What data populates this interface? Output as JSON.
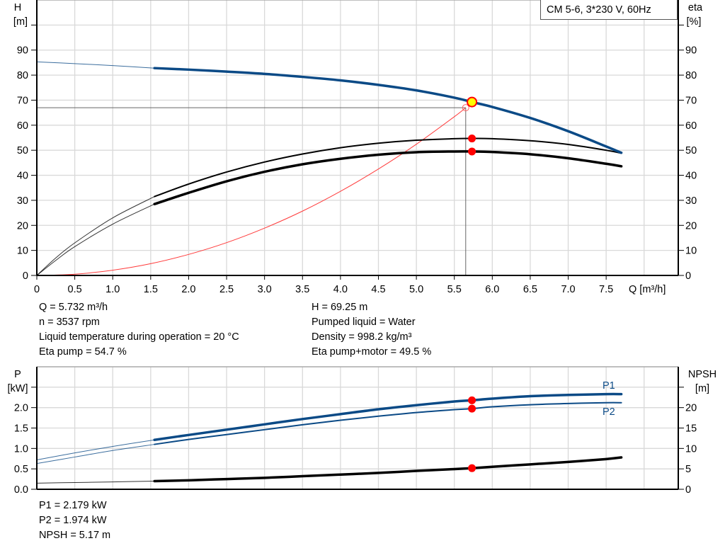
{
  "chart_data": [
    {
      "type": "line",
      "title": "CM 5-6, 3*230 V, 60Hz",
      "xlabel": "Q [m³/h]",
      "ylabel_left": [
        "H",
        "[m]"
      ],
      "ylabel_right": [
        "eta",
        "[%]"
      ],
      "xlim": [
        0,
        8.45
      ],
      "ylim": [
        0,
        110
      ],
      "grid": true,
      "x_ticks": [
        "0",
        "0.5",
        "1.0",
        "1.5",
        "2.0",
        "2.5",
        "3.0",
        "3.5",
        "4.0",
        "4.5",
        "5.0",
        "5.5",
        "6.0",
        "6.5",
        "7.0",
        "7.5"
      ],
      "y_ticks": [
        "0",
        "10",
        "20",
        "30",
        "40",
        "50",
        "60",
        "70",
        "80",
        "90"
      ],
      "series": [
        {
          "key": "H",
          "color": "#0b4a86",
          "thin_until": 1.55,
          "x": [
            0,
            0.5,
            1.0,
            1.55,
            2.0,
            2.5,
            3.0,
            3.5,
            4.0,
            4.5,
            5.0,
            5.5,
            5.732,
            6.0,
            6.5,
            7.0,
            7.5,
            7.7
          ],
          "y": [
            85.3,
            84.6,
            83.8,
            82.8,
            82.2,
            81.4,
            80.5,
            79.3,
            77.9,
            76.1,
            73.9,
            71.0,
            69.25,
            67.3,
            62.9,
            57.6,
            51.5,
            49.0
          ]
        },
        {
          "key": "eta_pump",
          "color": "#000000",
          "thin_until": 1.55,
          "x": [
            0,
            0.25,
            0.5,
            1.0,
            1.55,
            2.0,
            2.5,
            3.0,
            3.5,
            4.0,
            4.5,
            5.0,
            5.5,
            5.732,
            6.0,
            6.5,
            7.0,
            7.5,
            7.7
          ],
          "y": [
            0,
            7,
            13,
            23,
            31.5,
            36.5,
            41.3,
            45.3,
            48.5,
            51.0,
            52.8,
            54.0,
            54.6,
            54.7,
            54.6,
            53.8,
            52.3,
            50.0,
            48.8
          ]
        },
        {
          "key": "eta_pump_motor",
          "color": "#000000",
          "thin_until": 1.55,
          "x": [
            0,
            0.25,
            0.5,
            1.0,
            1.55,
            2.0,
            2.5,
            3.0,
            3.5,
            4.0,
            4.5,
            5.0,
            5.5,
            5.732,
            6.0,
            6.5,
            7.0,
            7.5,
            7.7
          ],
          "y": [
            0,
            6,
            11.5,
            20.5,
            28.5,
            33.0,
            37.6,
            41.4,
            44.4,
            46.6,
            48.2,
            49.2,
            49.5,
            49.5,
            49.3,
            48.4,
            46.8,
            44.6,
            43.6
          ]
        },
        {
          "key": "system_curve",
          "color": "#ff3b3b",
          "x": [
            0,
            0.5,
            1.0,
            1.5,
            2.0,
            2.5,
            3.0,
            3.5,
            4.0,
            4.5,
            5.0,
            5.5,
            5.65
          ],
          "y": [
            0,
            0.5,
            2.1,
            4.7,
            8.4,
            13.1,
            18.9,
            25.7,
            33.6,
            42.5,
            52.4,
            63.4,
            67.0
          ]
        }
      ],
      "duty_point": {
        "x": 5.732,
        "H": 69.25,
        "eta_pump": 54.7,
        "eta_pump_motor": 49.5
      },
      "required_point": {
        "x": 5.65,
        "H": 67.0
      }
    },
    {
      "type": "line",
      "ylabel_left": [
        "P",
        "[kW]"
      ],
      "ylabel_right": [
        "NPSH",
        "[m]"
      ],
      "xlim": [
        0,
        8.45
      ],
      "ylim": [
        0,
        3.0
      ],
      "ylim_right": [
        0,
        30
      ],
      "grid": true,
      "y_ticks": [
        "0.0",
        "0.5",
        "1.0",
        "1.5",
        "2.0"
      ],
      "y_ticks_right": [
        "0",
        "5",
        "10",
        "15",
        "20"
      ],
      "series": [
        {
          "name": "P1",
          "color": "#0b4a86",
          "thin_until": 1.55,
          "x": [
            0,
            0.5,
            1.0,
            1.55,
            2.0,
            2.5,
            3.0,
            3.5,
            4.0,
            4.5,
            5.0,
            5.5,
            5.732,
            6.0,
            6.5,
            7.0,
            7.5,
            7.7
          ],
          "y": [
            0.72,
            0.89,
            1.05,
            1.21,
            1.33,
            1.46,
            1.59,
            1.72,
            1.84,
            1.96,
            2.06,
            2.15,
            2.179,
            2.22,
            2.28,
            2.31,
            2.33,
            2.33
          ]
        },
        {
          "name": "P2",
          "color": "#0b4a86",
          "thin_until": 1.55,
          "x": [
            0,
            0.5,
            1.0,
            1.55,
            2.0,
            2.5,
            3.0,
            3.5,
            4.0,
            4.5,
            5.0,
            5.5,
            5.732,
            6.0,
            6.5,
            7.0,
            7.5,
            7.7
          ],
          "y": [
            0.63,
            0.79,
            0.95,
            1.1,
            1.22,
            1.34,
            1.46,
            1.58,
            1.69,
            1.79,
            1.88,
            1.95,
            1.974,
            2.02,
            2.07,
            2.1,
            2.12,
            2.12
          ]
        },
        {
          "key": "NPSH",
          "color": "#000000",
          "thin_until": 1.55,
          "axis": "right",
          "x": [
            0,
            0.5,
            1.0,
            1.55,
            2.0,
            2.5,
            3.0,
            3.5,
            4.0,
            4.5,
            5.0,
            5.5,
            5.732,
            6.0,
            6.5,
            7.0,
            7.5,
            7.7
          ],
          "y": [
            1.5,
            1.65,
            1.8,
            2.0,
            2.2,
            2.5,
            2.8,
            3.2,
            3.6,
            4.0,
            4.5,
            4.95,
            5.17,
            5.5,
            6.1,
            6.7,
            7.4,
            7.8
          ]
        }
      ],
      "duty_point": {
        "x": 5.732,
        "P1": 2.179,
        "P2": 1.974,
        "NPSH": 5.17
      }
    }
  ],
  "info_top": {
    "left": [
      "Q = 5.732 m³/h",
      "n = 3537 rpm",
      "Liquid temperature during operation = 20 °C",
      "Eta pump = 54.7 %"
    ],
    "right": [
      "H = 69.25 m",
      "Pumped liquid = Water",
      "Density = 998.2 kg/m³",
      "Eta pump+motor = 49.5 %"
    ]
  },
  "info_bottom": [
    "P1 = 2.179 kW",
    "P2 = 1.974 kW",
    "NPSH = 5.17 m"
  ],
  "colors": {
    "grid": "#d9d9d9",
    "curve_blue": "#0b4a86",
    "marker": "#ff0000",
    "duty_marker": "#ffff00"
  }
}
